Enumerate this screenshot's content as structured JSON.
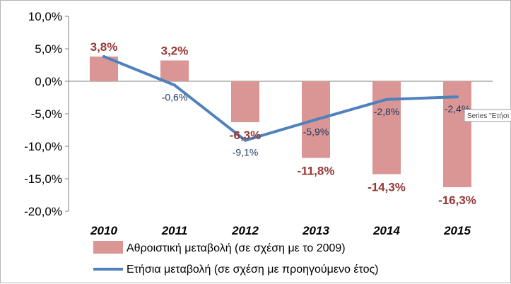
{
  "chart_data": {
    "type": "bar",
    "categories": [
      "2010",
      "2011",
      "2012",
      "2013",
      "2014",
      "2015"
    ],
    "series": [
      {
        "name": "Αθροιστική μεταβολή (σε σχέση με το 2009)",
        "kind": "bar",
        "values": [
          3.8,
          3.2,
          -6.3,
          -11.8,
          -14.3,
          -16.3
        ],
        "labels": [
          "3,8%",
          "3,2%",
          "-6,3%",
          "-11,8%",
          "-14,3%",
          "-16,3%"
        ],
        "color": "#d99694",
        "label_color": "#953735"
      },
      {
        "name": "Ετήσια μεταβολή (σε σχέση με προηγούμενο έτος)",
        "kind": "line",
        "values": [
          3.8,
          -0.6,
          -9.1,
          -5.9,
          -2.8,
          -2.4
        ],
        "labels": [
          "",
          "-0,6%",
          "-9,1%",
          "-5,9%",
          "-2,8%",
          "-2,4%"
        ],
        "color": "#4f81bd",
        "label_color": "#1f3864"
      }
    ],
    "ylim": [
      -20,
      10
    ],
    "yticks": [
      10,
      5,
      0,
      -5,
      -10,
      -15,
      -20
    ],
    "ytick_labels": [
      "10,0%",
      "5,0%",
      "0,0%",
      "-5,0%",
      "-10,0%",
      "-15,0%",
      "-20,0%"
    ],
    "legend_position": "bottom",
    "tooltip": "Series \"Ετήσι"
  }
}
